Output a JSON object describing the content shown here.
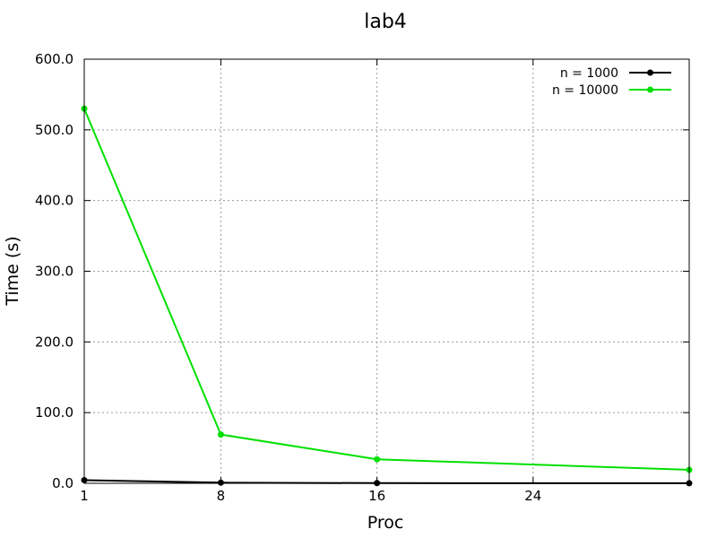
{
  "chart_data": {
    "type": "line",
    "title": "lab4",
    "xlabel": "Proc",
    "ylabel": "Time (s)",
    "xlim": [
      1,
      32
    ],
    "ylim": [
      0,
      600
    ],
    "xticks": [
      1,
      8,
      16,
      24
    ],
    "yticks": [
      0,
      100,
      200,
      300,
      400,
      500,
      600
    ],
    "ytick_labels": [
      "0.0",
      "100.0",
      "200.0",
      "300.0",
      "400.0",
      "500.0",
      "600.0"
    ],
    "grid": true,
    "legend_position": "top-right",
    "series": [
      {
        "name": "n = 1000",
        "color": "#000000",
        "x": [
          1,
          8,
          16,
          32
        ],
        "y": [
          4.5,
          0.9,
          0.3,
          0.1
        ]
      },
      {
        "name": "n = 10000",
        "color": "#00e000",
        "x": [
          1,
          8,
          16,
          32
        ],
        "y": [
          530,
          69,
          34,
          19
        ]
      }
    ]
  }
}
